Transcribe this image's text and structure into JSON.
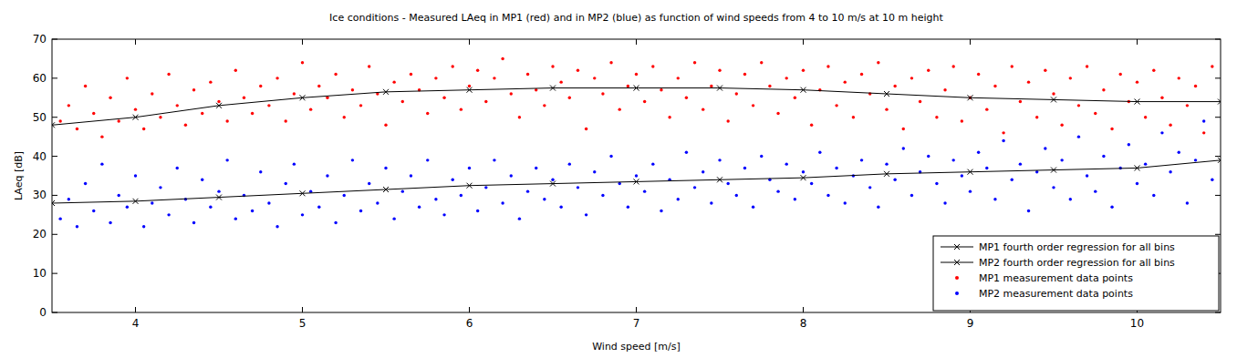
{
  "chart_data": {
    "type": "scatter",
    "title": "Ice conditions - Measured LAeq in MP1 (red) and in MP2 (blue) as function of wind speeds from 4 to 10 m/s at 10 m height",
    "x_label": "Wind speed [m/s]",
    "y_label": "LAeq [dB]",
    "xlim": [
      3.5,
      10.5
    ],
    "ylim": [
      0,
      70
    ],
    "xticks": [
      4,
      5,
      6,
      7,
      8,
      9,
      10
    ],
    "yticks": [
      0,
      10,
      20,
      30,
      40,
      50,
      60,
      70
    ],
    "grid": false,
    "legend": "lower right",
    "series": [
      {
        "name": "MP1 fourth order regression for all bins",
        "type": "line",
        "color": "#000000",
        "marker": "x",
        "line_style": "solid",
        "x": [
          3.5,
          4,
          4.5,
          5,
          5.5,
          6,
          6.5,
          7,
          7.5,
          8,
          8.5,
          9,
          9.5,
          10,
          10.5
        ],
        "values": [
          48,
          50,
          53,
          55,
          56.5,
          57,
          57.5,
          57.5,
          57.5,
          57,
          56,
          55,
          54.5,
          54,
          54
        ]
      },
      {
        "name": "MP2 fourth order regression for all bins",
        "type": "line",
        "color": "#000000",
        "marker": "x",
        "line_style": "solid",
        "x": [
          3.5,
          4,
          4.5,
          5,
          5.5,
          6,
          6.5,
          7,
          7.5,
          8,
          8.5,
          9,
          9.5,
          10,
          10.5
        ],
        "values": [
          28,
          28.5,
          29.5,
          30.5,
          31.5,
          32.5,
          33,
          33.5,
          34,
          34.5,
          35.5,
          36,
          36.5,
          37,
          39
        ]
      },
      {
        "name": "MP1 measurement data points",
        "type": "scatter",
        "color": "#ff0000",
        "marker": "point",
        "x": [
          3.55,
          3.6,
          3.65,
          3.7,
          3.75,
          3.8,
          3.85,
          3.9,
          3.95,
          4.0,
          4.05,
          4.1,
          4.15,
          4.2,
          4.25,
          4.3,
          4.35,
          4.4,
          4.45,
          4.5,
          4.55,
          4.6,
          4.65,
          4.7,
          4.75,
          4.8,
          4.85,
          4.9,
          4.95,
          5.0,
          5.05,
          5.1,
          5.15,
          5.2,
          5.25,
          5.3,
          5.35,
          5.4,
          5.45,
          5.5,
          5.55,
          5.6,
          5.65,
          5.7,
          5.75,
          5.8,
          5.85,
          5.9,
          5.95,
          6.0,
          6.05,
          6.1,
          6.15,
          6.2,
          6.25,
          6.3,
          6.35,
          6.4,
          6.45,
          6.5,
          6.55,
          6.6,
          6.65,
          6.7,
          6.75,
          6.8,
          6.85,
          6.9,
          6.95,
          7.0,
          7.05,
          7.1,
          7.15,
          7.2,
          7.25,
          7.3,
          7.35,
          7.4,
          7.45,
          7.5,
          7.55,
          7.6,
          7.65,
          7.7,
          7.75,
          7.8,
          7.85,
          7.9,
          7.95,
          8.0,
          8.05,
          8.1,
          8.15,
          8.2,
          8.25,
          8.3,
          8.35,
          8.4,
          8.45,
          8.5,
          8.55,
          8.6,
          8.65,
          8.7,
          8.75,
          8.8,
          8.85,
          8.9,
          8.95,
          9.0,
          9.05,
          9.1,
          9.15,
          9.2,
          9.25,
          9.3,
          9.35,
          9.4,
          9.45,
          9.5,
          9.55,
          9.6,
          9.65,
          9.7,
          9.75,
          9.8,
          9.85,
          9.9,
          9.95,
          10.0,
          10.05,
          10.1,
          10.15,
          10.2,
          10.25,
          10.3,
          10.35,
          10.4,
          10.45
        ],
        "values": [
          49,
          53,
          47,
          58,
          51,
          45,
          55,
          49,
          60,
          52,
          47,
          56,
          50,
          61,
          53,
          48,
          57,
          51,
          59,
          54,
          49,
          62,
          55,
          51,
          58,
          53,
          60,
          49,
          56,
          64,
          52,
          58,
          55,
          61,
          50,
          57,
          53,
          63,
          56,
          48,
          59,
          54,
          61,
          57,
          51,
          60,
          55,
          63,
          52,
          58,
          62,
          54,
          60,
          65,
          56,
          50,
          61,
          57,
          53,
          63,
          59,
          55,
          62,
          47,
          60,
          56,
          64,
          52,
          58,
          61,
          54,
          63,
          57,
          50,
          60,
          55,
          64,
          52,
          58,
          62,
          49,
          56,
          61,
          53,
          64,
          58,
          51,
          60,
          55,
          62,
          48,
          57,
          63,
          53,
          59,
          50,
          61,
          56,
          64,
          52,
          58,
          47,
          60,
          54,
          62,
          50,
          57,
          63,
          49,
          55,
          61,
          52,
          58,
          46,
          63,
          54,
          59,
          50,
          62,
          56,
          48,
          60,
          53,
          63,
          51,
          57,
          47,
          61,
          54,
          59,
          50,
          62,
          55,
          48,
          60,
          53,
          58,
          46,
          63
        ]
      },
      {
        "name": "MP2 measurement data points",
        "type": "scatter",
        "color": "#0000ff",
        "marker": "point",
        "x": [
          3.55,
          3.6,
          3.65,
          3.7,
          3.75,
          3.8,
          3.85,
          3.9,
          3.95,
          4.0,
          4.05,
          4.1,
          4.15,
          4.2,
          4.25,
          4.3,
          4.35,
          4.4,
          4.45,
          4.5,
          4.55,
          4.6,
          4.65,
          4.7,
          4.75,
          4.8,
          4.85,
          4.9,
          4.95,
          5.0,
          5.05,
          5.1,
          5.15,
          5.2,
          5.25,
          5.3,
          5.35,
          5.4,
          5.45,
          5.5,
          5.55,
          5.6,
          5.65,
          5.7,
          5.75,
          5.8,
          5.85,
          5.9,
          5.95,
          6.0,
          6.05,
          6.1,
          6.15,
          6.2,
          6.25,
          6.3,
          6.35,
          6.4,
          6.45,
          6.5,
          6.55,
          6.6,
          6.65,
          6.7,
          6.75,
          6.8,
          6.85,
          6.9,
          6.95,
          7.0,
          7.05,
          7.1,
          7.15,
          7.2,
          7.25,
          7.3,
          7.35,
          7.4,
          7.45,
          7.5,
          7.55,
          7.6,
          7.65,
          7.7,
          7.75,
          7.8,
          7.85,
          7.9,
          7.95,
          8.0,
          8.05,
          8.1,
          8.15,
          8.2,
          8.25,
          8.3,
          8.35,
          8.4,
          8.45,
          8.5,
          8.55,
          8.6,
          8.65,
          8.7,
          8.75,
          8.8,
          8.85,
          8.9,
          8.95,
          9.0,
          9.05,
          9.1,
          9.15,
          9.2,
          9.25,
          9.3,
          9.35,
          9.4,
          9.45,
          9.5,
          9.55,
          9.6,
          9.65,
          9.7,
          9.75,
          9.8,
          9.85,
          9.9,
          9.95,
          10.0,
          10.05,
          10.1,
          10.15,
          10.2,
          10.25,
          10.3,
          10.35,
          10.4,
          10.45
        ],
        "values": [
          24,
          29,
          22,
          33,
          26,
          38,
          23,
          30,
          27,
          35,
          22,
          28,
          32,
          25,
          37,
          29,
          23,
          34,
          27,
          31,
          39,
          24,
          30,
          26,
          36,
          28,
          22,
          33,
          38,
          25,
          31,
          27,
          35,
          23,
          30,
          39,
          26,
          33,
          28,
          37,
          24,
          31,
          35,
          27,
          39,
          29,
          25,
          34,
          30,
          37,
          26,
          32,
          39,
          28,
          35,
          24,
          31,
          37,
          29,
          34,
          27,
          38,
          32,
          25,
          36,
          30,
          40,
          33,
          27,
          35,
          31,
          38,
          26,
          34,
          29,
          41,
          32,
          36,
          28,
          39,
          33,
          30,
          37,
          27,
          40,
          34,
          31,
          38,
          29,
          36,
          33,
          41,
          30,
          37,
          28,
          35,
          39,
          32,
          27,
          38,
          34,
          42,
          30,
          36,
          40,
          33,
          28,
          39,
          35,
          31,
          41,
          37,
          29,
          44,
          34,
          38,
          26,
          36,
          42,
          32,
          39,
          29,
          45,
          35,
          31,
          40,
          27,
          37,
          43,
          33,
          38,
          30,
          46,
          36,
          41,
          28,
          39,
          49,
          34
        ]
      }
    ]
  }
}
